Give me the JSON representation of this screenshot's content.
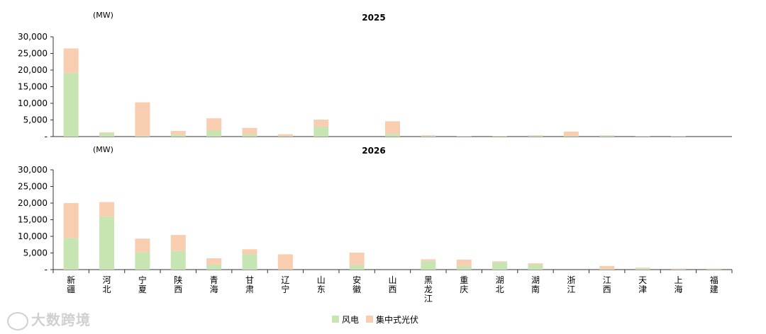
{
  "chart_data": [
    {
      "type": "bar",
      "stacked": true,
      "title": "2025",
      "unit_label": "(MW)",
      "categories": [
        "新疆",
        "河北",
        "宁夏",
        "陕西",
        "青海",
        "甘肃",
        "辽宁",
        "山东",
        "安徽",
        "山西",
        "黑龙江",
        "重庆",
        "湖北",
        "湖南",
        "浙江",
        "江西",
        "天津",
        "上海",
        "福建"
      ],
      "series": [
        {
          "name": "风电",
          "values": [
            19200,
            1100,
            200,
            600,
            1800,
            700,
            100,
            3000,
            0,
            800,
            200,
            50,
            100,
            300,
            200,
            300,
            50,
            30,
            0
          ]
        },
        {
          "name": "集中式光伏",
          "values": [
            7300,
            200,
            10100,
            1100,
            3700,
            1900,
            600,
            2100,
            0,
            3800,
            200,
            50,
            100,
            100,
            1300,
            100,
            50,
            70,
            0
          ]
        }
      ],
      "ylim": [
        0,
        30000
      ],
      "yticks": [
        "-",
        "5,000",
        "10,000",
        "15,000",
        "20,000",
        "25,000",
        "30,000"
      ],
      "grid": false
    },
    {
      "type": "bar",
      "stacked": true,
      "title": "2026",
      "unit_label": "(MW)",
      "categories": [
        "新疆",
        "河北",
        "宁夏",
        "陕西",
        "青海",
        "甘肃",
        "辽宁",
        "山东",
        "安徽",
        "山西",
        "黑龙江",
        "重庆",
        "湖北",
        "湖南",
        "浙江",
        "江西",
        "天津",
        "上海",
        "福建"
      ],
      "series": [
        {
          "name": "风电",
          "values": [
            9500,
            16000,
            5200,
            5600,
            1500,
            4600,
            100,
            0,
            1300,
            0,
            2600,
            1100,
            2200,
            1500,
            0,
            200,
            400,
            100,
            100
          ]
        },
        {
          "name": "集中式光伏",
          "values": [
            10500,
            4300,
            4100,
            4800,
            1900,
            1500,
            4500,
            0,
            3800,
            0,
            500,
            1900,
            300,
            400,
            0,
            900,
            200,
            200,
            200
          ]
        }
      ],
      "ylim": [
        0,
        30000
      ],
      "yticks": [
        "-",
        "5,000",
        "10,000",
        "15,000",
        "20,000",
        "25,000",
        "30,000"
      ],
      "grid": false
    }
  ],
  "legend": {
    "wind": "风电",
    "solar": "集中式光伏",
    "placement": "bottom-center"
  },
  "colors": {
    "wind": "#c6e5b3",
    "solar": "#f9cdb0",
    "axis": "#333333"
  },
  "watermark": "大数跨境"
}
